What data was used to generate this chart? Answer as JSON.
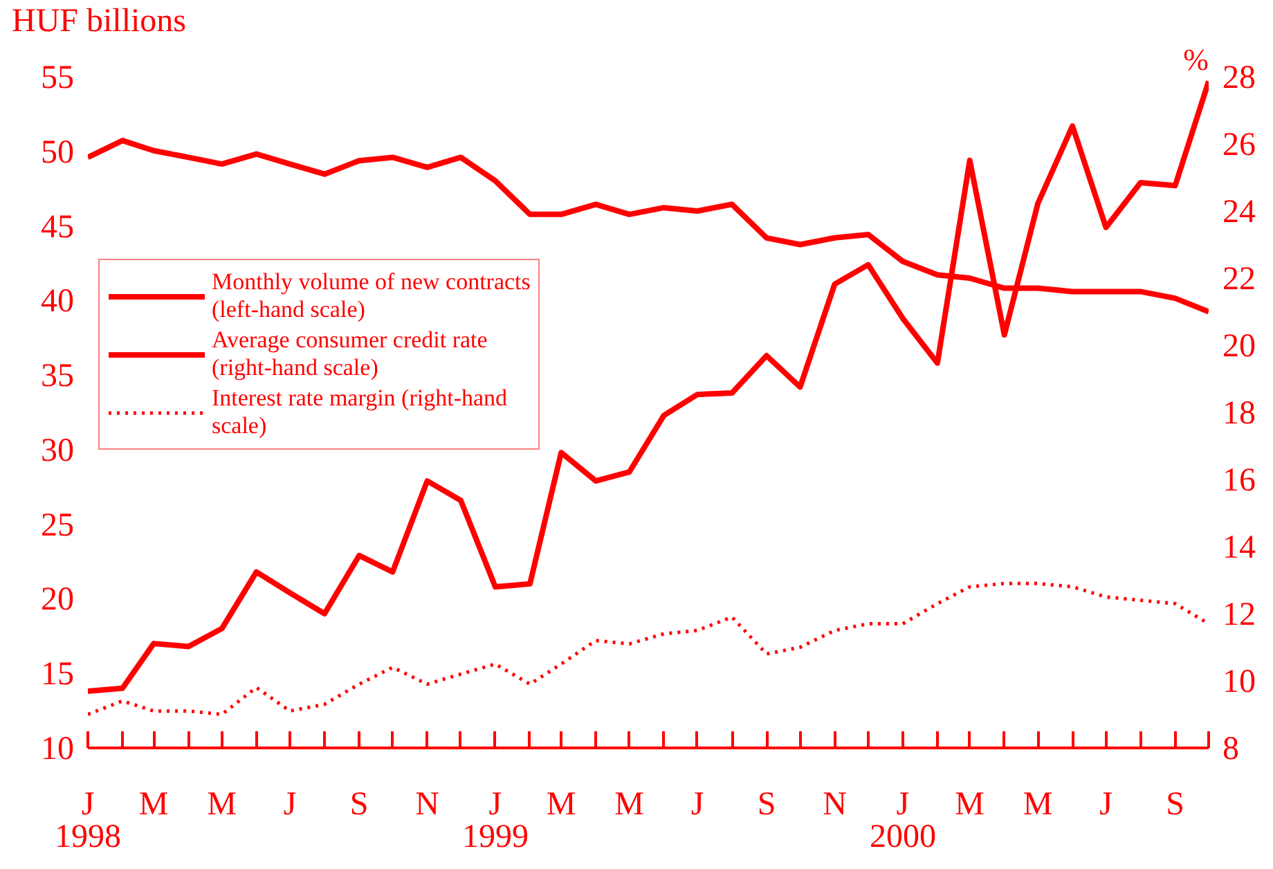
{
  "chart_data": {
    "type": "line",
    "ylabel": "HUF billions",
    "y2label": "%",
    "x": [
      "1998-01",
      "1998-02",
      "1998-03",
      "1998-04",
      "1998-05",
      "1998-06",
      "1998-07",
      "1998-08",
      "1998-09",
      "1998-10",
      "1998-11",
      "1998-12",
      "1999-01",
      "1999-02",
      "1999-03",
      "1999-04",
      "1999-05",
      "1999-06",
      "1999-07",
      "1999-08",
      "1999-09",
      "1999-10",
      "1999-11",
      "1999-12",
      "2000-01",
      "2000-02",
      "2000-03",
      "2000-04",
      "2000-05",
      "2000-06",
      "2000-07",
      "2000-08",
      "2000-09",
      "2000-10"
    ],
    "series": [
      {
        "name": "Monthly volume of new contracts (left-hand scale)",
        "color": "#ff0000",
        "line_style": "solid",
        "values": [
          13.8,
          14.0,
          17.0,
          16.8,
          18.0,
          21.8,
          20.4,
          19.0,
          22.9,
          21.8,
          27.9,
          26.6,
          20.8,
          21.0,
          29.8,
          27.9,
          28.5,
          32.3,
          33.7,
          33.8,
          36.3,
          34.2,
          41.1,
          42.4,
          38.8,
          35.8,
          49.4,
          37.7,
          46.5,
          51.7,
          44.9,
          47.9,
          47.7,
          54.7
        ]
      },
      {
        "name": "Average consumer credit rate (right-hand scale)",
        "color": "#ff0000",
        "line_style": "solid",
        "axis": "y2",
        "values": [
          25.6,
          26.1,
          25.8,
          25.6,
          25.4,
          25.7,
          25.4,
          25.1,
          25.5,
          25.6,
          25.3,
          25.6,
          24.9,
          23.9,
          23.9,
          24.2,
          23.9,
          24.1,
          24.0,
          24.2,
          23.2,
          23.0,
          23.2,
          23.3,
          22.5,
          22.1,
          22.0,
          21.7,
          21.7,
          21.6,
          21.6,
          21.6,
          21.4,
          21.0
        ]
      },
      {
        "name": "Interest rate margin (right-hand scale)",
        "color": "#ff0000",
        "line_style": "dotted",
        "axis": "y2",
        "values": [
          9.0,
          9.4,
          9.1,
          9.1,
          9.0,
          9.8,
          9.1,
          9.3,
          9.9,
          10.4,
          9.9,
          10.2,
          10.5,
          9.9,
          10.5,
          11.2,
          11.1,
          11.4,
          11.5,
          11.9,
          10.8,
          11.0,
          11.5,
          11.7,
          11.7,
          12.3,
          12.8,
          12.9,
          12.9,
          12.8,
          12.5,
          12.4,
          12.3,
          11.7
        ]
      }
    ],
    "xlim": [
      "1998-01",
      "2000-10"
    ],
    "xticks": [
      {
        "value": "1998-01",
        "label": "J\n1998"
      },
      {
        "value": "1998-02",
        "label": null
      },
      {
        "value": "1998-03",
        "label": "M"
      },
      {
        "value": "1998-04",
        "label": null
      },
      {
        "value": "1998-05",
        "label": "M"
      },
      {
        "value": "1998-06",
        "label": null
      },
      {
        "value": "1998-07",
        "label": "J"
      },
      {
        "value": "1998-08",
        "label": null
      },
      {
        "value": "1998-09",
        "label": "S"
      },
      {
        "value": "1998-10",
        "label": null
      },
      {
        "value": "1998-11",
        "label": "N"
      },
      {
        "value": "1998-12",
        "label": null
      },
      {
        "value": "1999-01",
        "label": "J\n1999"
      },
      {
        "value": "1999-02",
        "label": null
      },
      {
        "value": "1999-03",
        "label": "M"
      },
      {
        "value": "1999-04",
        "label": null
      },
      {
        "value": "1999-05",
        "label": "M"
      },
      {
        "value": "1999-06",
        "label": null
      },
      {
        "value": "1999-07",
        "label": "J"
      },
      {
        "value": "1999-08",
        "label": null
      },
      {
        "value": "1999-09",
        "label": "S"
      },
      {
        "value": "1999-10",
        "label": null
      },
      {
        "value": "1999-11",
        "label": "N"
      },
      {
        "value": "1999-12",
        "label": null
      },
      {
        "value": "2000-01",
        "label": "J\n2000"
      },
      {
        "value": "2000-02",
        "label": null
      },
      {
        "value": "2000-03",
        "label": "M"
      },
      {
        "value": "2000-04",
        "label": null
      },
      {
        "value": "2000-05",
        "label": "M"
      },
      {
        "value": "2000-06",
        "label": null
      },
      {
        "value": "2000-07",
        "label": "J"
      },
      {
        "value": "2000-08",
        "label": null
      },
      {
        "value": "2000-09",
        "label": "S"
      },
      {
        "value": "2000-10",
        "label": null
      }
    ],
    "ylim": [
      10,
      55
    ],
    "yticks": [
      10,
      15,
      20,
      25,
      30,
      35,
      40,
      45,
      50,
      55
    ],
    "y2lim": [
      8,
      28
    ],
    "y2ticks": [
      8,
      10,
      12,
      14,
      16,
      18,
      20,
      22,
      24,
      26,
      28
    ],
    "legend": "top left",
    "grid": false,
    "marker": "none"
  }
}
